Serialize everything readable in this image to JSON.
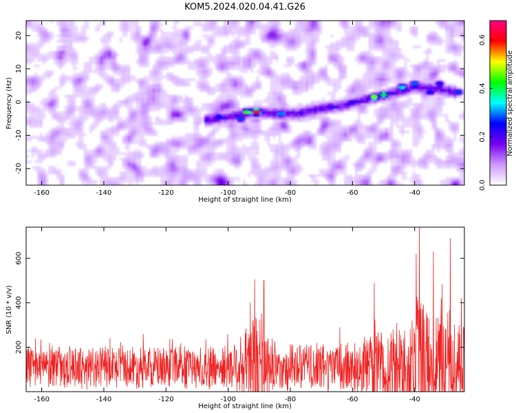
{
  "title": "KOM5.2024.020.04.41.G26",
  "colors": {
    "snr_line": "#ee2222",
    "background": "#ffffff",
    "axis": "#000000"
  },
  "chart_data": [
    {
      "type": "heatmap",
      "xlabel": "Height of straight line (km)",
      "ylabel": "Frequency (Hz)",
      "xlim": [
        -165,
        -24
      ],
      "ylim": [
        -25,
        24.5
      ],
      "x_ticks": [
        "-160",
        "-140",
        "-120",
        "-100",
        "-80",
        "-60",
        "-40"
      ],
      "y_ticks": [
        "-20",
        "-10",
        "0",
        "10",
        "20"
      ],
      "colorbar": {
        "label": "Normalized spectral amplitude",
        "range": [
          0,
          0.68
        ],
        "ticks": [
          "0.0",
          "0.2",
          "0.4",
          "0.6"
        ],
        "colormap": [
          "#ffffff",
          "#cc99ff",
          "#7700ee",
          "#0000ff",
          "#00ffff",
          "#00ff00",
          "#ffff00",
          "#ff0000",
          "#ff0088"
        ]
      },
      "noise_level": 0.18,
      "trail": [
        {
          "x": -108,
          "y": -5.5
        },
        {
          "x": -100,
          "y": -4.5
        },
        {
          "x": -91,
          "y": -3
        },
        {
          "x": -85,
          "y": -3.5
        },
        {
          "x": -78,
          "y": -3.5
        },
        {
          "x": -70,
          "y": -2
        },
        {
          "x": -63,
          "y": -1
        },
        {
          "x": -57,
          "y": 0.5
        },
        {
          "x": -52,
          "y": 1.5
        },
        {
          "x": -46,
          "y": 3
        },
        {
          "x": -40,
          "y": 4.5
        },
        {
          "x": -33,
          "y": 4
        },
        {
          "x": -27,
          "y": 3
        }
      ],
      "peaks": [
        {
          "x": -91,
          "y": -3,
          "value": 0.66
        },
        {
          "x": -94,
          "y": -3,
          "value": 0.45
        },
        {
          "x": -83,
          "y": -3.5,
          "value": 0.32
        },
        {
          "x": -96,
          "y": -5,
          "value": 0.28
        },
        {
          "x": -103,
          "y": -4.5,
          "value": 0.26
        },
        {
          "x": -53,
          "y": 1.5,
          "value": 0.48
        },
        {
          "x": -50,
          "y": 2.2,
          "value": 0.42
        },
        {
          "x": -44,
          "y": 4.5,
          "value": 0.36
        },
        {
          "x": -40,
          "y": 5.5,
          "value": 0.3
        },
        {
          "x": -35,
          "y": 3,
          "value": 0.25
        },
        {
          "x": -32,
          "y": 5.5,
          "value": 0.24
        },
        {
          "x": -26,
          "y": 3,
          "value": 0.28
        },
        {
          "x": -60,
          "y": 0,
          "value": 0.22
        },
        {
          "x": -67,
          "y": -1.5,
          "value": 0.2
        }
      ]
    },
    {
      "type": "line",
      "xlabel": "Height of straight line (km)",
      "ylabel": "SNR (10 * v/v)",
      "xlim": [
        -165,
        -24
      ],
      "ylim": [
        0,
        740
      ],
      "x_ticks": [
        "-160",
        "-140",
        "-120",
        "-100",
        "-80",
        "-60",
        "-40"
      ],
      "y_ticks": [
        "200",
        "400",
        "600"
      ],
      "baseline": 110,
      "envelope": [
        {
          "x": -165,
          "amp": 140
        },
        {
          "x": -120,
          "amp": 140
        },
        {
          "x": -100,
          "amp": 150
        },
        {
          "x": -95,
          "amp": 230
        },
        {
          "x": -91,
          "amp": 380
        },
        {
          "x": -88,
          "amp": 260
        },
        {
          "x": -84,
          "amp": 150
        },
        {
          "x": -60,
          "amp": 170
        },
        {
          "x": -50,
          "amp": 250
        },
        {
          "x": -43,
          "amp": 290
        },
        {
          "x": -39,
          "amp": 540
        },
        {
          "x": -35,
          "amp": 350
        },
        {
          "x": -29,
          "amp": 430
        },
        {
          "x": -24,
          "amp": 300
        }
      ],
      "peaks": [
        {
          "x": -91.5,
          "value": 505
        },
        {
          "x": -88.5,
          "value": 500
        },
        {
          "x": -53,
          "value": 490
        },
        {
          "x": -38.5,
          "value": 740
        },
        {
          "x": -39.5,
          "value": 620
        },
        {
          "x": -34,
          "value": 630
        },
        {
          "x": -28.5,
          "value": 690
        },
        {
          "x": -25,
          "value": 420
        }
      ]
    }
  ]
}
